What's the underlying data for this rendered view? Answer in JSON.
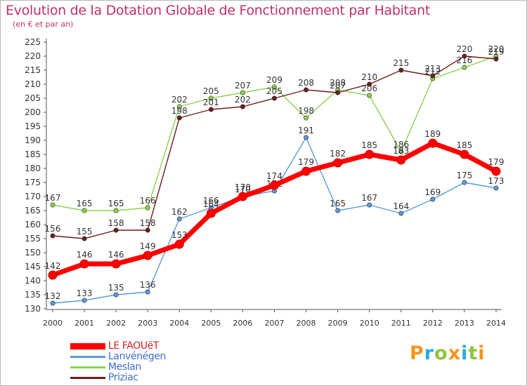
{
  "header": {
    "title": "Evolution de la Dotation Globale de Fonctionnement par Habitant",
    "subtitle": "(en € et par an)"
  },
  "logo": {
    "text": "Proxiti",
    "colors": [
      "#f7941d",
      "#29abe2",
      "#8cc63f",
      "#f7941d",
      "#29abe2",
      "#8cc63f",
      "#f7941d"
    ]
  },
  "chart_data": {
    "type": "line",
    "title": "Evolution de la Dotation Globale de Fonctionnement par Habitant",
    "subtitle": "(en € et par an)",
    "xlabel": "",
    "ylabel": "",
    "x": [
      "2000",
      "2001",
      "2002",
      "2003",
      "2004",
      "2005",
      "2006",
      "2007",
      "2008",
      "2009",
      "2010",
      "2011",
      "2012",
      "2013",
      "2014"
    ],
    "ylim": [
      130,
      225
    ],
    "ytick_step": 5,
    "grid": false,
    "legend_position": "bottom-left",
    "series": [
      {
        "name": "LE FAOUëT",
        "color": "#ff0000",
        "values": [
          142,
          146,
          146,
          149,
          153,
          164,
          170,
          174,
          179,
          182,
          185,
          183,
          189,
          185,
          179
        ],
        "labels": [
          "142",
          "146",
          "146",
          "149",
          "153",
          "164",
          "170",
          "174",
          "179",
          "182",
          "185",
          "183",
          "189",
          "185",
          "179"
        ]
      },
      {
        "name": "Lanvénégen",
        "color": "#5b9bd5",
        "values": [
          132,
          133,
          135,
          136,
          162,
          166,
          170,
          172,
          191,
          165,
          167,
          164,
          169,
          175,
          173
        ],
        "labels": [
          "132",
          "133",
          "135",
          "136",
          "162",
          "166",
          "170",
          "172",
          "191",
          "165",
          "167",
          "164",
          "169",
          "175",
          "173"
        ]
      },
      {
        "name": "Meslan",
        "color": "#8fd14f",
        "values": [
          167,
          165,
          165,
          166,
          202,
          205,
          207,
          209,
          198,
          208,
          206,
          186,
          212,
          216,
          220
        ],
        "labels": [
          "167",
          "165",
          "165",
          "166",
          "202",
          "205",
          "207",
          "209",
          "198",
          "208",
          "206",
          "186",
          "212",
          "216",
          "220"
        ]
      },
      {
        "name": "Priziac",
        "color": "#6b1f1f",
        "values": [
          156,
          155,
          158,
          158,
          198,
          201,
          202,
          205,
          208,
          207,
          210,
          215,
          213,
          220,
          219
        ],
        "labels": [
          "156",
          "155",
          "158",
          "158",
          "198",
          "201",
          "202",
          "205",
          "208",
          "207",
          "210",
          "215",
          "213",
          "220",
          "219"
        ]
      }
    ]
  }
}
